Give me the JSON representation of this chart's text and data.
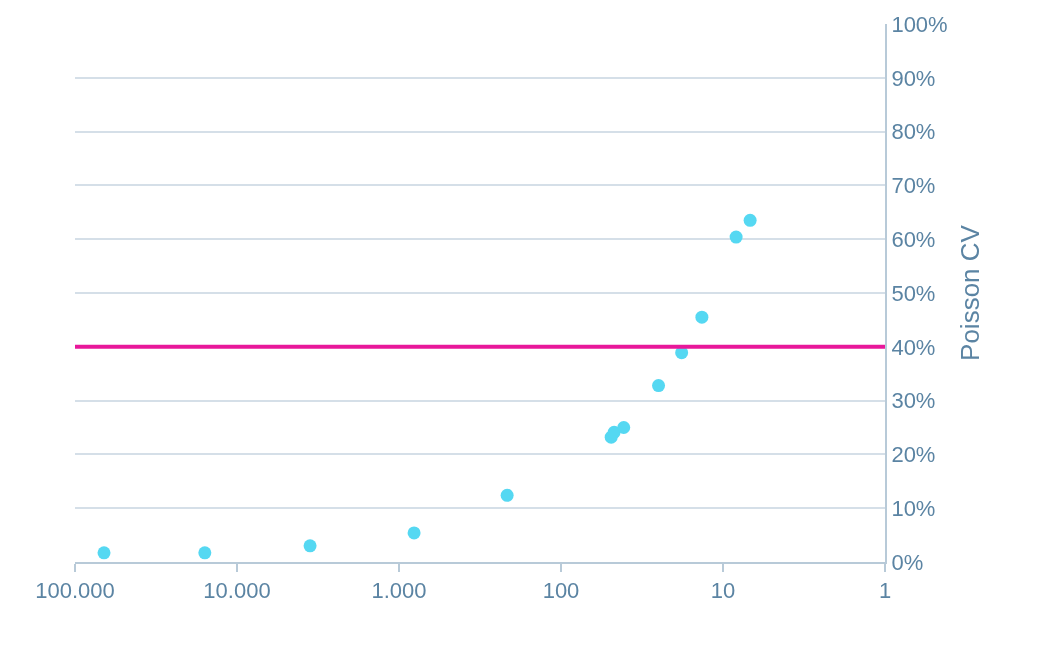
{
  "chart_data": {
    "type": "scatter",
    "ylabel": "Poisson CV",
    "x": [
      66200,
      15800,
      3540,
      807,
      215,
      49,
      47,
      41,
      25,
      18,
      13.5,
      8.3,
      6.8
    ],
    "values": [
      1.7,
      1.7,
      3.0,
      5.4,
      12.4,
      23.2,
      24.1,
      25.0,
      32.8,
      38.9,
      45.5,
      60.4,
      63.5
    ],
    "color": "#55d8f2",
    "marker": "circle",
    "log": "x",
    "xlim": [
      100000,
      1
    ],
    "xticks": [
      {
        "value": 100000,
        "label": "100.000"
      },
      {
        "value": 10000,
        "label": "10.000"
      },
      {
        "value": 1000,
        "label": "1.000"
      },
      {
        "value": 100,
        "label": "100"
      },
      {
        "value": 10,
        "label": "10"
      },
      {
        "value": 1,
        "label": "1"
      }
    ],
    "ylim": [
      0,
      100
    ],
    "yticks": [
      {
        "value": 0,
        "label": "0%"
      },
      {
        "value": 10,
        "label": "10%"
      },
      {
        "value": 20,
        "label": "20%"
      },
      {
        "value": 30,
        "label": "30%"
      },
      {
        "value": 40,
        "label": "40%"
      },
      {
        "value": 50,
        "label": "50%"
      },
      {
        "value": 60,
        "label": "60%"
      },
      {
        "value": 70,
        "label": "70%"
      },
      {
        "value": 80,
        "label": "80%"
      },
      {
        "value": 90,
        "label": "90%"
      },
      {
        "value": 100,
        "label": "100%"
      }
    ],
    "grid": "y",
    "ref_lines": [
      {
        "axis": "y",
        "value": 40,
        "color": "#e8189a"
      }
    ]
  }
}
